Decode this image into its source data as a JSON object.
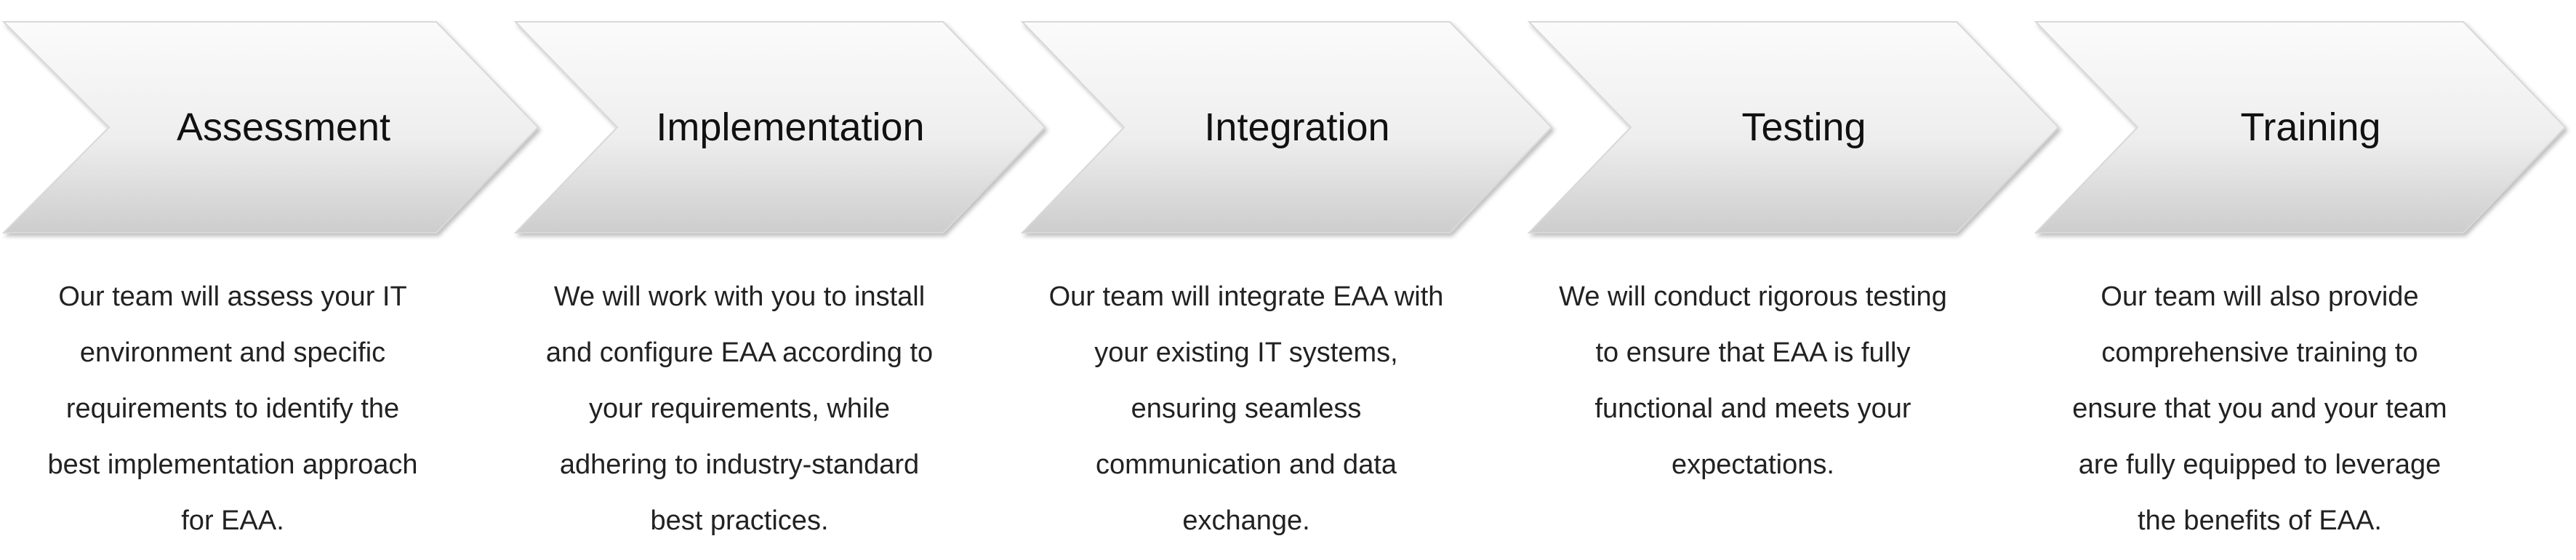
{
  "steps": [
    {
      "title": "Assessment",
      "description_lines": [
        "Our team will assess your IT",
        "environment and specific",
        "requirements to identify the",
        "best implementation approach",
        "for EAA."
      ]
    },
    {
      "title": "Implementation",
      "description_lines": [
        "We will work with you to install",
        "and configure EAA according to",
        "your requirements, while",
        "adhering to industry-standard",
        "best practices."
      ]
    },
    {
      "title": "Integration",
      "description_lines": [
        "Our team will integrate EAA with",
        "your existing IT systems,",
        "ensuring seamless",
        "communication and data",
        "exchange."
      ]
    },
    {
      "title": "Testing",
      "description_lines": [
        "We will conduct rigorous testing",
        "to ensure that EAA is fully",
        "functional and meets your",
        "expectations."
      ]
    },
    {
      "title": "Training",
      "description_lines": [
        "Our team will also provide",
        "comprehensive training to",
        "ensure that you and your team",
        "are fully equipped to leverage",
        "the benefits of EAA."
      ]
    }
  ],
  "colors": {
    "chevron_top": "#fafafa",
    "chevron_bottom": "#cfcfcf",
    "chevron_stroke": "#d6d6d6",
    "title_text": "#111111",
    "body_text": "#222222"
  }
}
